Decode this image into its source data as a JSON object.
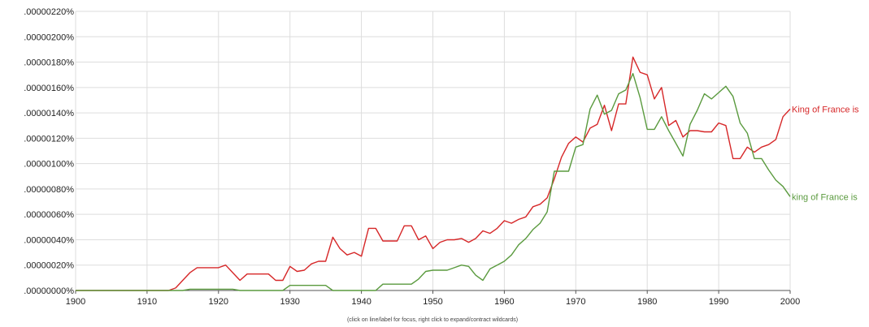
{
  "chart_data": {
    "type": "line",
    "xlim": [
      1900,
      2000
    ],
    "ylim": [
      0,
      2.2e-06
    ],
    "grid": true,
    "legend": "inline labels at right end of each line",
    "x_tick_labels": [
      "1900",
      "1910",
      "1920",
      "1930",
      "1940",
      "1950",
      "1960",
      "1970",
      "1980",
      "1990",
      "2000"
    ],
    "y_tick_labels": [
      ".00000000%",
      ".00000020%",
      ".00000040%",
      ".00000060%",
      ".00000080%",
      ".00000100%",
      ".00000120%",
      ".00000140%",
      ".00000160%",
      ".00000180%",
      ".00000200%",
      ".00000220%"
    ],
    "note": "(click on line/label for focus, right click to expand/contract wildcards)",
    "series": [
      {
        "name": "King of France is",
        "color": "#d62728",
        "points": [
          [
            1900,
            0
          ],
          [
            1901,
            0
          ],
          [
            1902,
            0
          ],
          [
            1903,
            0
          ],
          [
            1904,
            0
          ],
          [
            1905,
            0
          ],
          [
            1906,
            0
          ],
          [
            1907,
            0
          ],
          [
            1908,
            0
          ],
          [
            1909,
            0
          ],
          [
            1910,
            0
          ],
          [
            1911,
            0
          ],
          [
            1912,
            0
          ],
          [
            1913,
            0
          ],
          [
            1914,
            2e-08
          ],
          [
            1915,
            8e-08
          ],
          [
            1916,
            1.4e-07
          ],
          [
            1917,
            1.8e-07
          ],
          [
            1918,
            1.8e-07
          ],
          [
            1919,
            1.8e-07
          ],
          [
            1920,
            1.8e-07
          ],
          [
            1921,
            2e-07
          ],
          [
            1922,
            1.4e-07
          ],
          [
            1923,
            8e-08
          ],
          [
            1924,
            1.3e-07
          ],
          [
            1925,
            1.3e-07
          ],
          [
            1926,
            1.3e-07
          ],
          [
            1927,
            1.3e-07
          ],
          [
            1928,
            8e-08
          ],
          [
            1929,
            8e-08
          ],
          [
            1930,
            1.9e-07
          ],
          [
            1931,
            1.5e-07
          ],
          [
            1932,
            1.6e-07
          ],
          [
            1933,
            2.1e-07
          ],
          [
            1934,
            2.3e-07
          ],
          [
            1935,
            2.3e-07
          ],
          [
            1936,
            4.2e-07
          ],
          [
            1937,
            3.3e-07
          ],
          [
            1938,
            2.8e-07
          ],
          [
            1939,
            3e-07
          ],
          [
            1940,
            2.7e-07
          ],
          [
            1941,
            4.9e-07
          ],
          [
            1942,
            4.9e-07
          ],
          [
            1943,
            3.9e-07
          ],
          [
            1944,
            3.9e-07
          ],
          [
            1945,
            3.9e-07
          ],
          [
            1946,
            5.1e-07
          ],
          [
            1947,
            5.1e-07
          ],
          [
            1948,
            4e-07
          ],
          [
            1949,
            4.3e-07
          ],
          [
            1950,
            3.3e-07
          ],
          [
            1951,
            3.8e-07
          ],
          [
            1952,
            4e-07
          ],
          [
            1953,
            4e-07
          ],
          [
            1954,
            4.1e-07
          ],
          [
            1955,
            3.8e-07
          ],
          [
            1956,
            4.1e-07
          ],
          [
            1957,
            4.7e-07
          ],
          [
            1958,
            4.5e-07
          ],
          [
            1959,
            4.9e-07
          ],
          [
            1960,
            5.5e-07
          ],
          [
            1961,
            5.3e-07
          ],
          [
            1962,
            5.6e-07
          ],
          [
            1963,
            5.8e-07
          ],
          [
            1964,
            6.6e-07
          ],
          [
            1965,
            6.8e-07
          ],
          [
            1966,
            7.3e-07
          ],
          [
            1967,
            8.8e-07
          ],
          [
            1968,
            1.05e-06
          ],
          [
            1969,
            1.16e-06
          ],
          [
            1970,
            1.21e-06
          ],
          [
            1971,
            1.17e-06
          ],
          [
            1972,
            1.28e-06
          ],
          [
            1973,
            1.31e-06
          ],
          [
            1974,
            1.46e-06
          ],
          [
            1975,
            1.26e-06
          ],
          [
            1976,
            1.47e-06
          ],
          [
            1977,
            1.47e-06
          ],
          [
            1978,
            1.84e-06
          ],
          [
            1979,
            1.72e-06
          ],
          [
            1980,
            1.7e-06
          ],
          [
            1981,
            1.51e-06
          ],
          [
            1982,
            1.6e-06
          ],
          [
            1983,
            1.3e-06
          ],
          [
            1984,
            1.34e-06
          ],
          [
            1985,
            1.21e-06
          ],
          [
            1986,
            1.26e-06
          ],
          [
            1987,
            1.26e-06
          ],
          [
            1988,
            1.25e-06
          ],
          [
            1989,
            1.25e-06
          ],
          [
            1990,
            1.32e-06
          ],
          [
            1991,
            1.3e-06
          ],
          [
            1992,
            1.04e-06
          ],
          [
            1993,
            1.04e-06
          ],
          [
            1994,
            1.13e-06
          ],
          [
            1995,
            1.09e-06
          ],
          [
            1996,
            1.13e-06
          ],
          [
            1997,
            1.15e-06
          ],
          [
            1998,
            1.19e-06
          ],
          [
            1999,
            1.37e-06
          ],
          [
            2000,
            1.43e-06
          ]
        ]
      },
      {
        "name": "king of France is",
        "color": "#5a9a3e",
        "points": [
          [
            1900,
            0
          ],
          [
            1901,
            0
          ],
          [
            1902,
            0
          ],
          [
            1903,
            0
          ],
          [
            1904,
            0
          ],
          [
            1905,
            0
          ],
          [
            1906,
            0
          ],
          [
            1907,
            0
          ],
          [
            1908,
            0
          ],
          [
            1909,
            0
          ],
          [
            1910,
            0
          ],
          [
            1911,
            0
          ],
          [
            1912,
            0
          ],
          [
            1913,
            0
          ],
          [
            1914,
            0
          ],
          [
            1915,
            0
          ],
          [
            1916,
            1e-08
          ],
          [
            1917,
            1e-08
          ],
          [
            1918,
            1e-08
          ],
          [
            1919,
            1e-08
          ],
          [
            1920,
            1e-08
          ],
          [
            1921,
            1e-08
          ],
          [
            1922,
            1e-08
          ],
          [
            1923,
            0
          ],
          [
            1924,
            0
          ],
          [
            1925,
            0
          ],
          [
            1926,
            0
          ],
          [
            1927,
            0
          ],
          [
            1928,
            0
          ],
          [
            1929,
            0
          ],
          [
            1930,
            4e-08
          ],
          [
            1931,
            4e-08
          ],
          [
            1932,
            4e-08
          ],
          [
            1933,
            4e-08
          ],
          [
            1934,
            4e-08
          ],
          [
            1935,
            4e-08
          ],
          [
            1936,
            0
          ],
          [
            1937,
            0
          ],
          [
            1938,
            0
          ],
          [
            1939,
            0
          ],
          [
            1940,
            0
          ],
          [
            1941,
            0
          ],
          [
            1942,
            0
          ],
          [
            1943,
            5e-08
          ],
          [
            1944,
            5e-08
          ],
          [
            1945,
            5e-08
          ],
          [
            1946,
            5e-08
          ],
          [
            1947,
            5e-08
          ],
          [
            1948,
            9e-08
          ],
          [
            1949,
            1.5e-07
          ],
          [
            1950,
            1.6e-07
          ],
          [
            1951,
            1.6e-07
          ],
          [
            1952,
            1.6e-07
          ],
          [
            1953,
            1.8e-07
          ],
          [
            1954,
            2e-07
          ],
          [
            1955,
            1.9e-07
          ],
          [
            1956,
            1.2e-07
          ],
          [
            1957,
            8e-08
          ],
          [
            1958,
            1.7e-07
          ],
          [
            1959,
            2e-07
          ],
          [
            1960,
            2.3e-07
          ],
          [
            1961,
            2.8e-07
          ],
          [
            1962,
            3.6e-07
          ],
          [
            1963,
            4.1e-07
          ],
          [
            1964,
            4.8e-07
          ],
          [
            1965,
            5.3e-07
          ],
          [
            1966,
            6.2e-07
          ],
          [
            1967,
            9.4e-07
          ],
          [
            1968,
            9.4e-07
          ],
          [
            1969,
            9.4e-07
          ],
          [
            1970,
            1.13e-06
          ],
          [
            1971,
            1.15e-06
          ],
          [
            1972,
            1.43e-06
          ],
          [
            1973,
            1.54e-06
          ],
          [
            1974,
            1.39e-06
          ],
          [
            1975,
            1.42e-06
          ],
          [
            1976,
            1.55e-06
          ],
          [
            1977,
            1.58e-06
          ],
          [
            1978,
            1.71e-06
          ],
          [
            1979,
            1.52e-06
          ],
          [
            1980,
            1.27e-06
          ],
          [
            1981,
            1.27e-06
          ],
          [
            1982,
            1.37e-06
          ],
          [
            1983,
            1.26e-06
          ],
          [
            1984,
            1.16e-06
          ],
          [
            1985,
            1.06e-06
          ],
          [
            1986,
            1.31e-06
          ],
          [
            1987,
            1.42e-06
          ],
          [
            1988,
            1.55e-06
          ],
          [
            1989,
            1.51e-06
          ],
          [
            1990,
            1.56e-06
          ],
          [
            1991,
            1.61e-06
          ],
          [
            1992,
            1.53e-06
          ],
          [
            1993,
            1.32e-06
          ],
          [
            1994,
            1.24e-06
          ],
          [
            1995,
            1.04e-06
          ],
          [
            1996,
            1.04e-06
          ],
          [
            1997,
            9.5e-07
          ],
          [
            1998,
            8.7e-07
          ],
          [
            1999,
            8.2e-07
          ],
          [
            2000,
            7.4e-07
          ]
        ]
      }
    ]
  }
}
